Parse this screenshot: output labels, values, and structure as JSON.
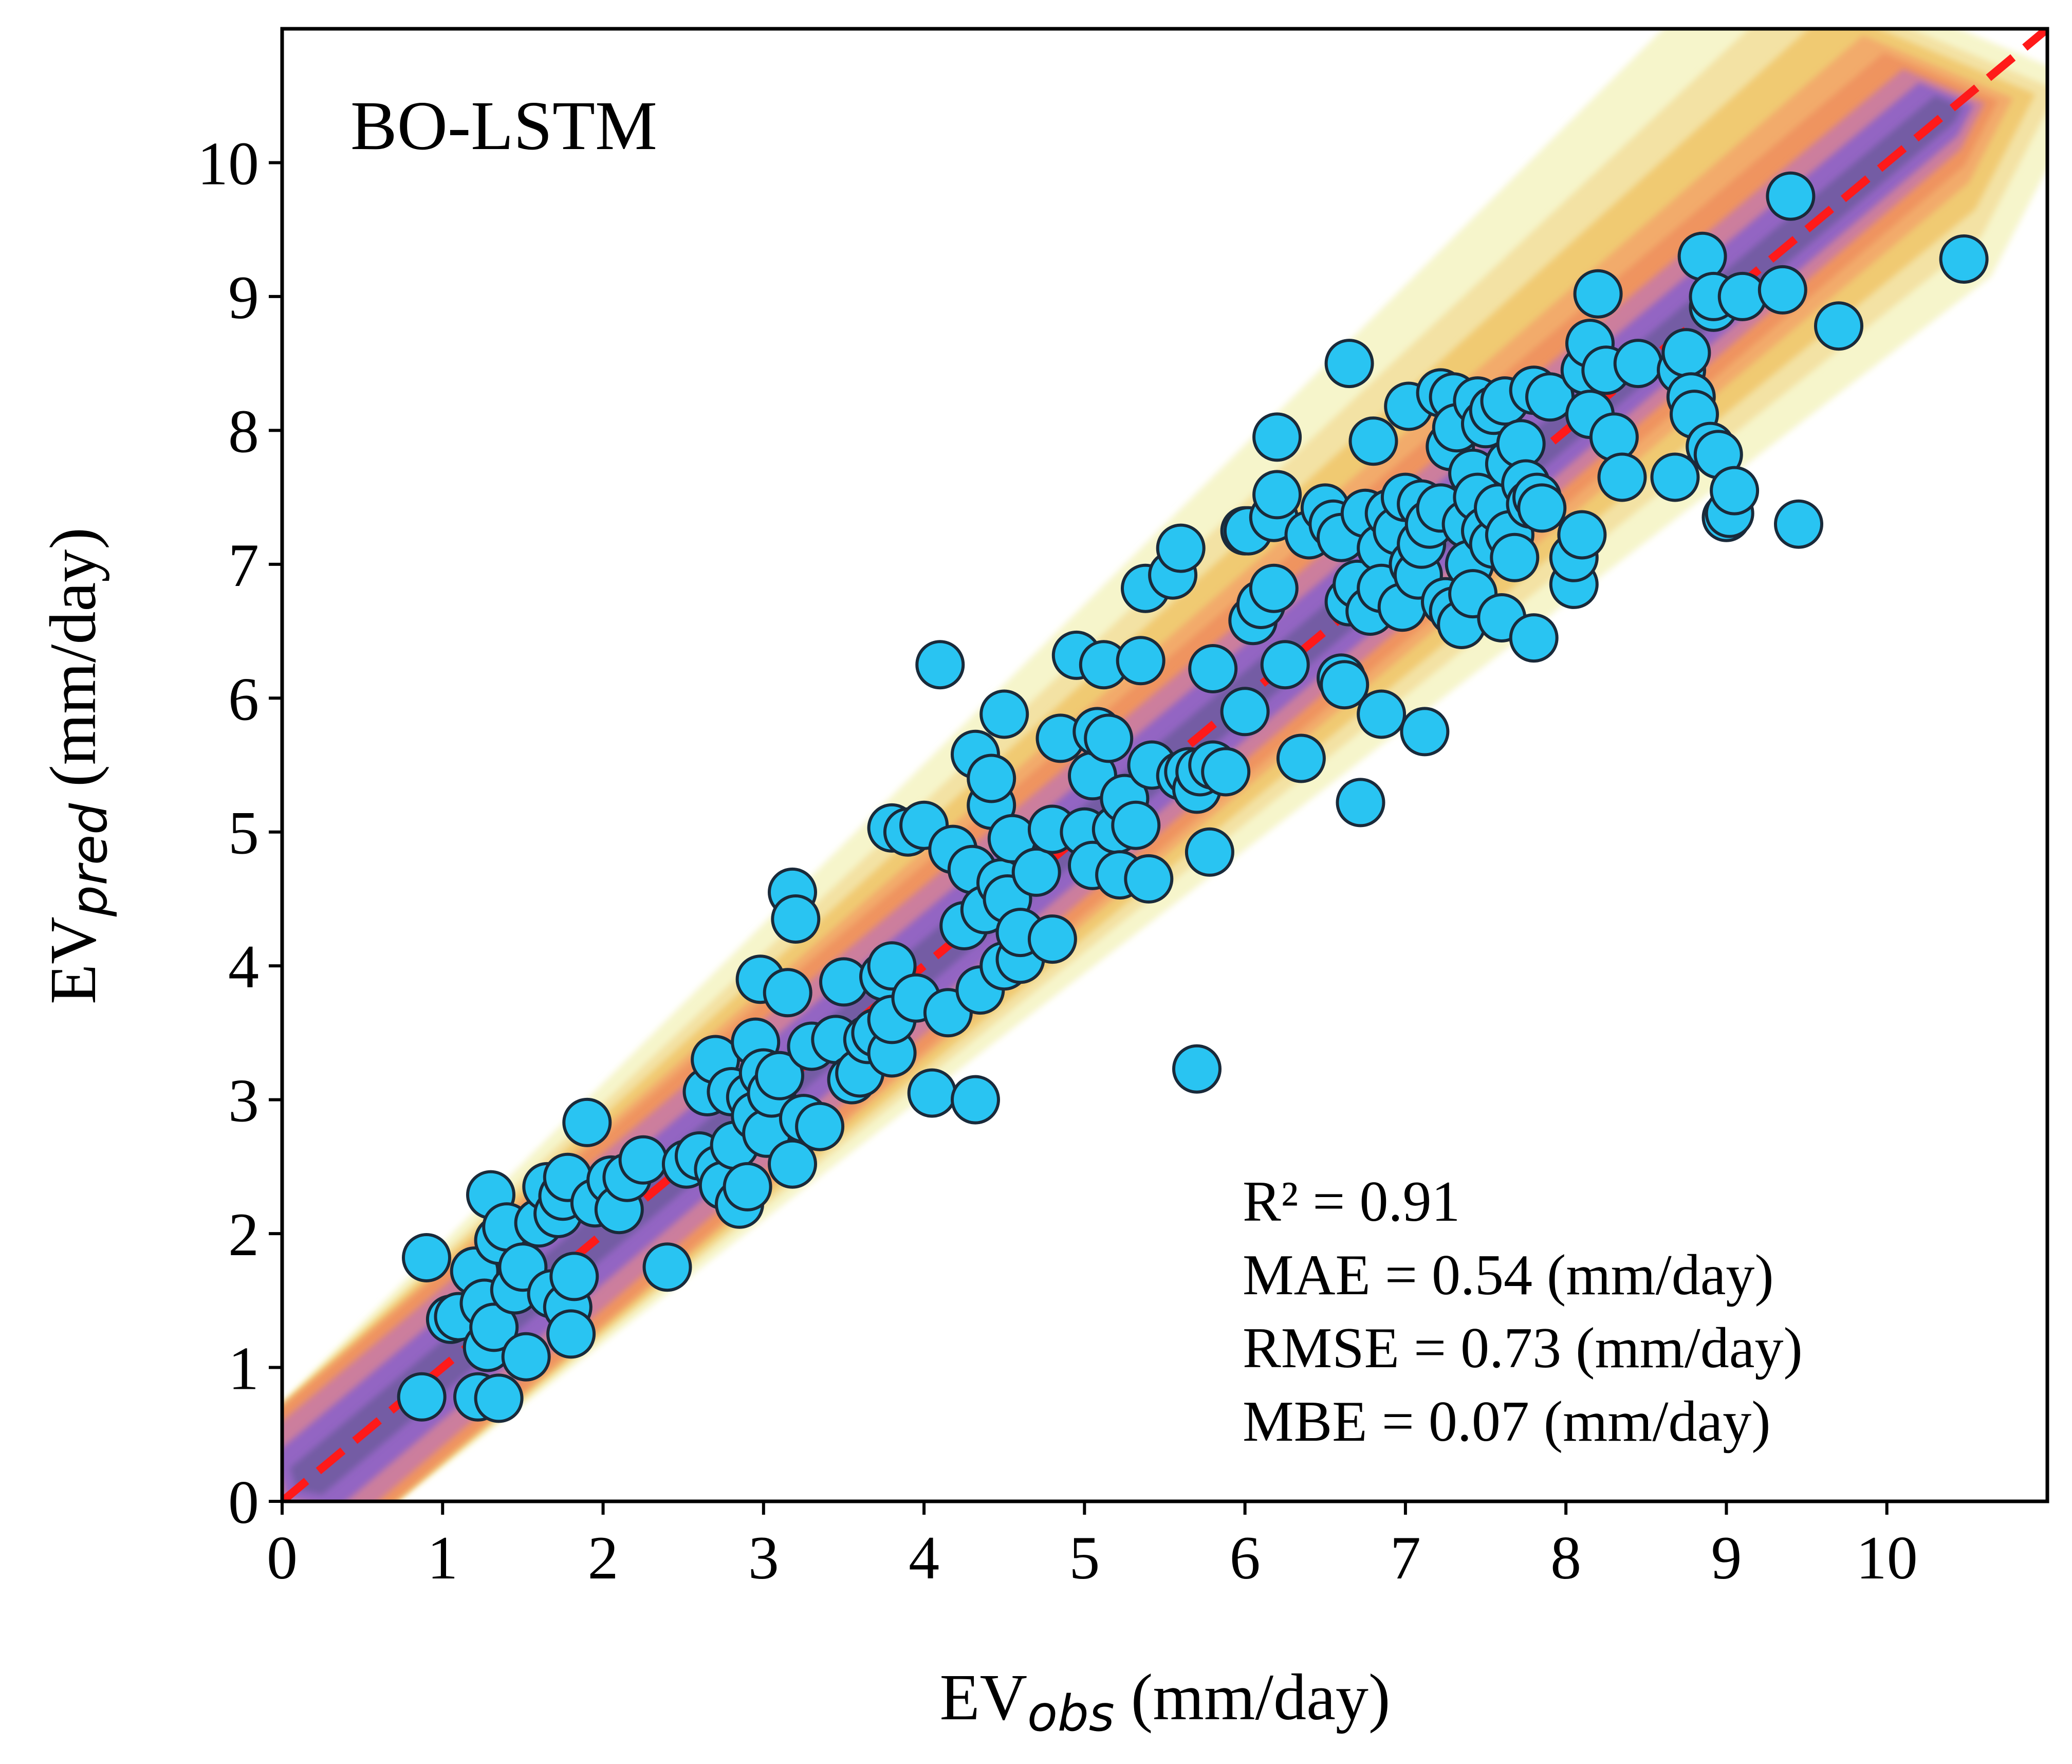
{
  "chart_data": {
    "type": "scatter",
    "panel_label": "BO-LSTM",
    "xlabel": {
      "main": "EV",
      "sub": "obs",
      "unit": " (mm/day)"
    },
    "ylabel": {
      "main": "EV",
      "sub": "pred",
      "unit": " (mm/day)"
    },
    "xlim": [
      0,
      11
    ],
    "ylim": [
      0,
      11
    ],
    "xticks": [
      "0",
      "1",
      "2",
      "3",
      "4",
      "5",
      "6",
      "7",
      "8",
      "9",
      "10"
    ],
    "yticks": [
      "0",
      "1",
      "2",
      "3",
      "4",
      "5",
      "6",
      "7",
      "8",
      "9",
      "10"
    ],
    "grid": false,
    "reference_line": {
      "style": "dashed",
      "color": "#ff1a1a",
      "from": [
        0,
        0
      ],
      "to": [
        11,
        11
      ]
    },
    "density_background": true,
    "stats": [
      "R² = 0.91",
      "MAE = 0.54 (mm/day)",
      "RMSE = 0.73 (mm/day)",
      "MBE = 0.07 (mm/day)"
    ],
    "colors": {
      "marker_fill": "#29c4f2",
      "marker_edge": "#1a2a3a",
      "density_outer": "#f6f4c8",
      "density_mid": "#f0c66a",
      "density_inner": "#ef8f5e",
      "density_core": "#8d63c8",
      "density_peak": "#6a5a9a"
    },
    "points": [
      [
        0.87,
        0.78
      ],
      [
        0.9,
        1.82
      ],
      [
        1.05,
        1.36
      ],
      [
        1.1,
        1.38
      ],
      [
        1.2,
        1.72
      ],
      [
        1.22,
        0.78
      ],
      [
        1.26,
        1.48
      ],
      [
        1.28,
        1.15
      ],
      [
        1.3,
        2.29
      ],
      [
        1.32,
        1.3
      ],
      [
        1.35,
        0.77
      ],
      [
        1.35,
        1.95
      ],
      [
        1.4,
        2.05
      ],
      [
        1.45,
        1.58
      ],
      [
        1.5,
        1.75
      ],
      [
        1.52,
        1.08
      ],
      [
        1.6,
        2.08
      ],
      [
        1.65,
        2.35
      ],
      [
        1.68,
        1.55
      ],
      [
        1.72,
        2.15
      ],
      [
        1.75,
        2.28
      ],
      [
        1.78,
        1.45
      ],
      [
        1.8,
        1.25
      ],
      [
        1.82,
        1.68
      ],
      [
        1.78,
        2.42
      ],
      [
        1.9,
        2.83
      ],
      [
        1.95,
        2.23
      ],
      [
        2.05,
        2.4
      ],
      [
        2.1,
        2.18
      ],
      [
        2.15,
        2.42
      ],
      [
        2.25,
        2.55
      ],
      [
        2.4,
        1.75
      ],
      [
        2.52,
        2.52
      ],
      [
        2.6,
        2.58
      ],
      [
        2.65,
        3.06
      ],
      [
        2.7,
        3.3
      ],
      [
        2.72,
        2.48
      ],
      [
        2.75,
        2.36
      ],
      [
        2.8,
        3.06
      ],
      [
        2.82,
        2.66
      ],
      [
        2.85,
        2.22
      ],
      [
        2.9,
        2.35
      ],
      [
        2.92,
        3.02
      ],
      [
        2.95,
        2.88
      ],
      [
        2.95,
        3.43
      ],
      [
        2.98,
        3.9
      ],
      [
        3.0,
        3.2
      ],
      [
        3.02,
        2.75
      ],
      [
        3.05,
        3.05
      ],
      [
        3.1,
        3.18
      ],
      [
        3.15,
        3.8
      ],
      [
        3.18,
        2.52
      ],
      [
        3.18,
        4.55
      ],
      [
        3.2,
        4.35
      ],
      [
        3.25,
        2.86
      ],
      [
        3.3,
        3.4
      ],
      [
        3.35,
        2.8
      ],
      [
        3.45,
        3.45
      ],
      [
        3.5,
        3.88
      ],
      [
        3.55,
        3.15
      ],
      [
        3.6,
        3.2
      ],
      [
        3.65,
        3.45
      ],
      [
        3.7,
        3.5
      ],
      [
        3.75,
        3.92
      ],
      [
        3.8,
        3.35
      ],
      [
        3.8,
        3.6
      ],
      [
        3.8,
        4.0
      ],
      [
        3.8,
        5.03
      ],
      [
        3.9,
        5.0
      ],
      [
        3.95,
        3.76
      ],
      [
        4.0,
        5.05
      ],
      [
        4.05,
        3.05
      ],
      [
        4.1,
        6.25
      ],
      [
        4.15,
        3.65
      ],
      [
        4.18,
        4.87
      ],
      [
        4.25,
        4.3
      ],
      [
        4.3,
        4.72
      ],
      [
        4.32,
        5.58
      ],
      [
        4.32,
        3.0
      ],
      [
        4.35,
        3.82
      ],
      [
        4.38,
        4.42
      ],
      [
        4.42,
        5.2
      ],
      [
        4.42,
        5.4
      ],
      [
        4.48,
        4.62
      ],
      [
        4.5,
        5.88
      ],
      [
        4.5,
        4.0
      ],
      [
        4.52,
        4.5
      ],
      [
        4.55,
        4.95
      ],
      [
        4.6,
        4.05
      ],
      [
        4.6,
        4.25
      ],
      [
        4.7,
        4.7
      ],
      [
        4.8,
        5.02
      ],
      [
        4.8,
        4.2
      ],
      [
        4.85,
        5.7
      ],
      [
        4.95,
        6.32
      ],
      [
        5.0,
        5.0
      ],
      [
        5.05,
        5.42
      ],
      [
        5.05,
        4.75
      ],
      [
        5.08,
        5.75
      ],
      [
        5.12,
        6.25
      ],
      [
        5.15,
        5.7
      ],
      [
        5.2,
        5.02
      ],
      [
        5.22,
        4.68
      ],
      [
        5.25,
        5.25
      ],
      [
        5.32,
        5.05
      ],
      [
        5.35,
        6.28
      ],
      [
        5.38,
        6.82
      ],
      [
        5.4,
        4.65
      ],
      [
        5.42,
        5.5
      ],
      [
        5.55,
        6.92
      ],
      [
        5.6,
        7.12
      ],
      [
        5.6,
        5.42
      ],
      [
        5.65,
        5.45
      ],
      [
        5.7,
        5.32
      ],
      [
        5.72,
        5.45
      ],
      [
        5.7,
        3.23
      ],
      [
        5.78,
        4.85
      ],
      [
        5.8,
        5.5
      ],
      [
        5.8,
        6.22
      ],
      [
        5.88,
        5.45
      ],
      [
        6.0,
        5.9
      ],
      [
        6.0,
        7.25
      ],
      [
        6.02,
        7.25
      ],
      [
        6.05,
        6.58
      ],
      [
        6.1,
        6.7
      ],
      [
        6.18,
        7.35
      ],
      [
        6.18,
        6.82
      ],
      [
        6.2,
        7.52
      ],
      [
        6.2,
        7.95
      ],
      [
        6.25,
        6.25
      ],
      [
        6.35,
        5.55
      ],
      [
        6.4,
        7.22
      ],
      [
        6.5,
        7.42
      ],
      [
        6.55,
        7.3
      ],
      [
        6.6,
        6.15
      ],
      [
        6.6,
        7.2
      ],
      [
        6.62,
        6.1
      ],
      [
        6.65,
        6.72
      ],
      [
        6.65,
        8.5
      ],
      [
        6.7,
        6.85
      ],
      [
        6.72,
        5.22
      ],
      [
        6.75,
        7.38
      ],
      [
        6.78,
        6.65
      ],
      [
        6.8,
        7.92
      ],
      [
        6.85,
        7.12
      ],
      [
        6.85,
        6.82
      ],
      [
        6.85,
        5.88
      ],
      [
        6.9,
        7.38
      ],
      [
        6.95,
        7.25
      ],
      [
        6.98,
        6.68
      ],
      [
        7.0,
        7.5
      ],
      [
        7.02,
        8.18
      ],
      [
        7.05,
        7.0
      ],
      [
        7.08,
        6.92
      ],
      [
        7.1,
        7.45
      ],
      [
        7.1,
        7.15
      ],
      [
        7.12,
        5.75
      ],
      [
        7.15,
        7.3
      ],
      [
        7.22,
        7.42
      ],
      [
        7.22,
        8.28
      ],
      [
        7.25,
        6.72
      ],
      [
        7.28,
        7.88
      ],
      [
        7.3,
        8.25
      ],
      [
        7.3,
        6.65
      ],
      [
        7.32,
        8.02
      ],
      [
        7.35,
        6.55
      ],
      [
        7.38,
        7.3
      ],
      [
        7.4,
        7.0
      ],
      [
        7.42,
        6.78
      ],
      [
        7.42,
        7.68
      ],
      [
        7.45,
        7.5
      ],
      [
        7.45,
        8.22
      ],
      [
        7.5,
        7.25
      ],
      [
        7.5,
        8.05
      ],
      [
        7.55,
        8.15
      ],
      [
        7.55,
        7.15
      ],
      [
        7.58,
        7.42
      ],
      [
        7.6,
        6.6
      ],
      [
        7.62,
        8.22
      ],
      [
        7.65,
        7.75
      ],
      [
        7.65,
        7.22
      ],
      [
        7.68,
        7.05
      ],
      [
        7.72,
        7.9
      ],
      [
        7.75,
        7.6
      ],
      [
        7.78,
        7.45
      ],
      [
        7.8,
        8.3
      ],
      [
        7.8,
        6.45
      ],
      [
        7.82,
        7.5
      ],
      [
        7.85,
        7.42
      ],
      [
        7.9,
        8.25
      ],
      [
        8.05,
        6.85
      ],
      [
        8.05,
        7.05
      ],
      [
        8.1,
        7.22
      ],
      [
        8.12,
        8.45
      ],
      [
        8.15,
        8.65
      ],
      [
        8.15,
        8.12
      ],
      [
        8.2,
        9.02
      ],
      [
        8.25,
        8.45
      ],
      [
        8.3,
        7.95
      ],
      [
        8.35,
        7.65
      ],
      [
        8.45,
        8.5
      ],
      [
        8.68,
        7.65
      ],
      [
        8.72,
        8.45
      ],
      [
        8.75,
        8.58
      ],
      [
        8.78,
        8.25
      ],
      [
        8.8,
        8.12
      ],
      [
        8.85,
        9.3
      ],
      [
        8.9,
        7.88
      ],
      [
        8.92,
        8.92
      ],
      [
        8.92,
        9.0
      ],
      [
        8.95,
        7.82
      ],
      [
        9.0,
        7.35
      ],
      [
        9.02,
        7.38
      ],
      [
        9.05,
        7.55
      ],
      [
        9.1,
        9.0
      ],
      [
        9.35,
        9.05
      ],
      [
        9.4,
        9.75
      ],
      [
        9.45,
        7.3
      ],
      [
        9.7,
        8.78
      ],
      [
        10.48,
        9.28
      ]
    ]
  }
}
